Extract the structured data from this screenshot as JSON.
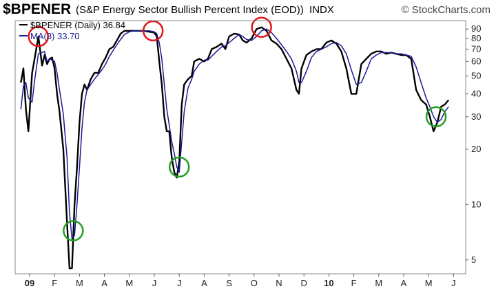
{
  "header": {
    "ticker": "$BPENER",
    "subtitle": "(S&P Energy Sector Bullish Percent Index (EOD))",
    "exchange": "INDX",
    "brand": "© StockCharts.com"
  },
  "legend": {
    "main_label": "$BPENER (Daily) 36.84",
    "ma_label": "MA(3) 33.70",
    "main_color": "#000000",
    "ma_color": "#1a1a9a"
  },
  "chart_data": {
    "type": "line",
    "scale": "log",
    "ylim": [
      4.2,
      100
    ],
    "yticks": [
      5,
      10,
      20,
      30,
      40,
      50,
      60,
      70,
      80,
      90
    ],
    "xlabels": [
      "09",
      "F",
      "M",
      "A",
      "M",
      "J",
      "J",
      "A",
      "S",
      "O",
      "N",
      "D",
      "10",
      "F",
      "M",
      "A",
      "M",
      "J"
    ],
    "xlim": [
      0,
      17.4
    ],
    "series": [
      {
        "name": "$BPENER",
        "color": "#000000",
        "points": [
          [
            -0.35,
            46
          ],
          [
            -0.25,
            55
          ],
          [
            -0.15,
            33
          ],
          [
            -0.05,
            25
          ],
          [
            0.1,
            52
          ],
          [
            0.2,
            62
          ],
          [
            0.35,
            82
          ],
          [
            0.5,
            57
          ],
          [
            0.6,
            65
          ],
          [
            0.7,
            58
          ],
          [
            0.8,
            62
          ],
          [
            0.9,
            63
          ],
          [
            1.0,
            55
          ],
          [
            1.1,
            40
          ],
          [
            1.2,
            32
          ],
          [
            1.35,
            20
          ],
          [
            1.5,
            8
          ],
          [
            1.6,
            4.5
          ],
          [
            1.7,
            4.5
          ],
          [
            1.8,
            10
          ],
          [
            1.9,
            16
          ],
          [
            2.0,
            28
          ],
          [
            2.1,
            40
          ],
          [
            2.2,
            45
          ],
          [
            2.3,
            42
          ],
          [
            2.45,
            48
          ],
          [
            2.6,
            52
          ],
          [
            2.75,
            52
          ],
          [
            2.9,
            58
          ],
          [
            3.05,
            63
          ],
          [
            3.2,
            70
          ],
          [
            3.35,
            72
          ],
          [
            3.5,
            78
          ],
          [
            3.65,
            85
          ],
          [
            3.8,
            88
          ],
          [
            4.0,
            88
          ],
          [
            4.2,
            88
          ],
          [
            4.4,
            88
          ],
          [
            4.6,
            88
          ],
          [
            4.8,
            87
          ],
          [
            5.0,
            86
          ],
          [
            5.1,
            82
          ],
          [
            5.2,
            60
          ],
          [
            5.3,
            45
          ],
          [
            5.4,
            30
          ],
          [
            5.5,
            25
          ],
          [
            5.6,
            25
          ],
          [
            5.7,
            18
          ],
          [
            5.8,
            15
          ],
          [
            5.9,
            14
          ],
          [
            6.0,
            17
          ],
          [
            6.1,
            35
          ],
          [
            6.2,
            45
          ],
          [
            6.35,
            48
          ],
          [
            6.5,
            50
          ],
          [
            6.6,
            60
          ],
          [
            6.8,
            62
          ],
          [
            7.0,
            60
          ],
          [
            7.15,
            62
          ],
          [
            7.3,
            70
          ],
          [
            7.5,
            72
          ],
          [
            7.7,
            75
          ],
          [
            7.85,
            70
          ],
          [
            8.0,
            82
          ],
          [
            8.2,
            85
          ],
          [
            8.4,
            84
          ],
          [
            8.55,
            78
          ],
          [
            8.7,
            76
          ],
          [
            8.9,
            80
          ],
          [
            9.1,
            90
          ],
          [
            9.3,
            92
          ],
          [
            9.5,
            88
          ],
          [
            9.7,
            78
          ],
          [
            9.9,
            75
          ],
          [
            10.1,
            70
          ],
          [
            10.3,
            62
          ],
          [
            10.5,
            55
          ],
          [
            10.7,
            42
          ],
          [
            10.8,
            40
          ],
          [
            10.9,
            55
          ],
          [
            11.1,
            65
          ],
          [
            11.3,
            68
          ],
          [
            11.5,
            70
          ],
          [
            11.7,
            70
          ],
          [
            11.9,
            76
          ],
          [
            12.1,
            78
          ],
          [
            12.3,
            75
          ],
          [
            12.5,
            68
          ],
          [
            12.7,
            55
          ],
          [
            12.9,
            40
          ],
          [
            13.1,
            40
          ],
          [
            13.3,
            58
          ],
          [
            13.5,
            62
          ],
          [
            13.7,
            66
          ],
          [
            13.9,
            68
          ],
          [
            14.1,
            68
          ],
          [
            14.3,
            66
          ],
          [
            14.5,
            67
          ],
          [
            14.7,
            66
          ],
          [
            14.9,
            65
          ],
          [
            15.1,
            65
          ],
          [
            15.3,
            62
          ],
          [
            15.5,
            42
          ],
          [
            15.7,
            37
          ],
          [
            15.9,
            35
          ],
          [
            16.05,
            30
          ],
          [
            16.2,
            25
          ],
          [
            16.35,
            28
          ],
          [
            16.5,
            34
          ],
          [
            16.65,
            35
          ],
          [
            16.8,
            37
          ]
        ]
      },
      {
        "name": "MA(3)",
        "color": "#1a1a9a",
        "points": [
          [
            -0.35,
            33
          ],
          [
            -0.25,
            44
          ],
          [
            -0.15,
            46
          ],
          [
            -0.05,
            38
          ],
          [
            0.1,
            36
          ],
          [
            0.2,
            47
          ],
          [
            0.35,
            66
          ],
          [
            0.5,
            67
          ],
          [
            0.6,
            68
          ],
          [
            0.7,
            60
          ],
          [
            0.8,
            62
          ],
          [
            0.9,
            61
          ],
          [
            1.0,
            60
          ],
          [
            1.1,
            52
          ],
          [
            1.2,
            42
          ],
          [
            1.35,
            31
          ],
          [
            1.5,
            18
          ],
          [
            1.6,
            9
          ],
          [
            1.7,
            6.5
          ],
          [
            1.8,
            6.8
          ],
          [
            1.9,
            10
          ],
          [
            2.0,
            16
          ],
          [
            2.1,
            26
          ],
          [
            2.2,
            36
          ],
          [
            2.3,
            42
          ],
          [
            2.45,
            45
          ],
          [
            2.6,
            48
          ],
          [
            2.75,
            51
          ],
          [
            2.9,
            54
          ],
          [
            3.05,
            58
          ],
          [
            3.2,
            64
          ],
          [
            3.35,
            69
          ],
          [
            3.5,
            74
          ],
          [
            3.65,
            79
          ],
          [
            3.8,
            84
          ],
          [
            4.0,
            87
          ],
          [
            4.2,
            88
          ],
          [
            4.4,
            88
          ],
          [
            4.6,
            88
          ],
          [
            4.8,
            88
          ],
          [
            5.0,
            87
          ],
          [
            5.1,
            85
          ],
          [
            5.2,
            76
          ],
          [
            5.3,
            62
          ],
          [
            5.4,
            45
          ],
          [
            5.5,
            33
          ],
          [
            5.6,
            27
          ],
          [
            5.7,
            22
          ],
          [
            5.8,
            19
          ],
          [
            5.9,
            16
          ],
          [
            6.0,
            15
          ],
          [
            6.1,
            22
          ],
          [
            6.2,
            32
          ],
          [
            6.35,
            43
          ],
          [
            6.5,
            48
          ],
          [
            6.6,
            53
          ],
          [
            6.8,
            58
          ],
          [
            7.0,
            61
          ],
          [
            7.15,
            61
          ],
          [
            7.3,
            64
          ],
          [
            7.5,
            68
          ],
          [
            7.7,
            72
          ],
          [
            7.85,
            73
          ],
          [
            8.0,
            76
          ],
          [
            8.2,
            80
          ],
          [
            8.4,
            84
          ],
          [
            8.55,
            82
          ],
          [
            8.7,
            79
          ],
          [
            8.9,
            78
          ],
          [
            9.1,
            82
          ],
          [
            9.3,
            88
          ],
          [
            9.5,
            90
          ],
          [
            9.7,
            86
          ],
          [
            9.9,
            80
          ],
          [
            10.1,
            74
          ],
          [
            10.3,
            68
          ],
          [
            10.5,
            62
          ],
          [
            10.7,
            53
          ],
          [
            10.8,
            46
          ],
          [
            10.9,
            46
          ],
          [
            11.1,
            53
          ],
          [
            11.3,
            63
          ],
          [
            11.5,
            68
          ],
          [
            11.7,
            70
          ],
          [
            11.9,
            72
          ],
          [
            12.1,
            75
          ],
          [
            12.3,
            76
          ],
          [
            12.5,
            73
          ],
          [
            12.7,
            66
          ],
          [
            12.9,
            54
          ],
          [
            13.1,
            45
          ],
          [
            13.3,
            46
          ],
          [
            13.5,
            53
          ],
          [
            13.7,
            62
          ],
          [
            13.9,
            65
          ],
          [
            14.1,
            67
          ],
          [
            14.3,
            67
          ],
          [
            14.5,
            67
          ],
          [
            14.7,
            66
          ],
          [
            14.9,
            66
          ],
          [
            15.1,
            65
          ],
          [
            15.3,
            64
          ],
          [
            15.5,
            56
          ],
          [
            15.7,
            46
          ],
          [
            15.9,
            38
          ],
          [
            16.05,
            34
          ],
          [
            16.2,
            30
          ],
          [
            16.35,
            28
          ],
          [
            16.5,
            29
          ],
          [
            16.65,
            32
          ],
          [
            16.8,
            34
          ]
        ]
      }
    ],
    "annotations": [
      {
        "type": "circle",
        "color": "#e01515",
        "x": 0.35,
        "y": 82
      },
      {
        "type": "circle",
        "color": "#20a020",
        "x": 1.75,
        "y": 7.2
      },
      {
        "type": "circle",
        "color": "#e01515",
        "x": 4.95,
        "y": 88
      },
      {
        "type": "circle",
        "color": "#20a020",
        "x": 6.0,
        "y": 16
      },
      {
        "type": "circle",
        "color": "#e01515",
        "x": 9.3,
        "y": 92
      },
      {
        "type": "circle",
        "color": "#20a020",
        "x": 16.3,
        "y": 30
      }
    ]
  }
}
